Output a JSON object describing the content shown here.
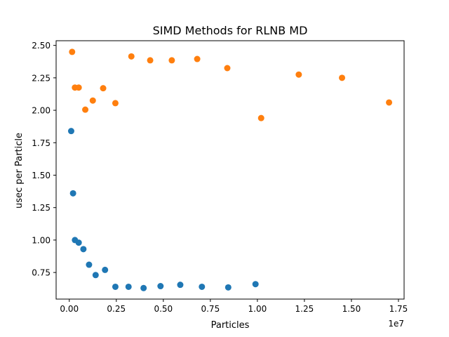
{
  "chart_data": {
    "type": "scatter",
    "title": "SIMD Methods for RLNB MD",
    "xlabel": "Particles",
    "ylabel": "usec per Particle",
    "x_offset_label": "1e7",
    "xlim": [
      -700000,
      17800000
    ],
    "ylim": [
      0.545,
      2.536
    ],
    "x_ticks": [
      0,
      2500000,
      5000000,
      7500000,
      10000000,
      12500000,
      15000000,
      17500000
    ],
    "x_tick_labels": [
      "0.00",
      "0.25",
      "0.50",
      "0.75",
      "1.00",
      "1.25",
      "1.50",
      "1.75"
    ],
    "y_ticks": [
      0.75,
      1.0,
      1.25,
      1.5,
      1.75,
      2.0,
      2.25,
      2.5
    ],
    "y_tick_labels": [
      "0.75",
      "1.00",
      "1.25",
      "1.50",
      "1.75",
      "2.00",
      "2.25",
      "2.50"
    ],
    "grid": false,
    "series": [
      {
        "color": "#1f77b4",
        "x": [
          100000,
          200000,
          300000,
          500000,
          750000,
          1050000,
          1400000,
          1900000,
          2450000,
          3150000,
          3950000,
          4850000,
          5900000,
          7050000,
          8450000,
          9900000
        ],
        "y": [
          1.84,
          1.36,
          1.0,
          0.98,
          0.93,
          0.81,
          0.73,
          0.77,
          0.64,
          0.64,
          0.63,
          0.645,
          0.655,
          0.64,
          0.635,
          0.66
        ]
      },
      {
        "color": "#ff7f0e",
        "x": [
          150000,
          300000,
          500000,
          850000,
          1250000,
          1800000,
          2450000,
          3300000,
          4300000,
          5450000,
          6800000,
          8400000,
          10200000,
          12200000,
          14500000,
          17000000
        ],
        "y": [
          2.45,
          2.175,
          2.175,
          2.005,
          2.075,
          2.17,
          2.055,
          2.415,
          2.385,
          2.385,
          2.395,
          2.325,
          1.94,
          2.275,
          2.25,
          2.06
        ]
      }
    ]
  }
}
